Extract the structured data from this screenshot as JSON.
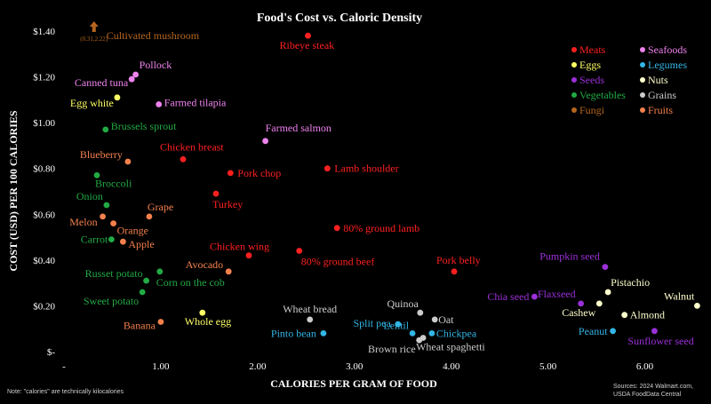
{
  "chart_data": {
    "type": "scatter",
    "title": "Food's Cost vs. Caloric Density",
    "xlabel": "CALORIES PER GRAM OF FOOD",
    "ylabel": "COST (USD) PER 100 CALORIES",
    "xlim": [
      0,
      6.5
    ],
    "ylim": [
      0,
      1.4
    ],
    "x_ticks": [
      {
        "value": 0,
        "label": "-"
      },
      {
        "value": 1,
        "label": "1.00"
      },
      {
        "value": 2,
        "label": "2.00"
      },
      {
        "value": 3,
        "label": "3.00"
      },
      {
        "value": 4,
        "label": "4.00"
      },
      {
        "value": 5,
        "label": "5.00"
      },
      {
        "value": 6,
        "label": "6.00"
      }
    ],
    "y_ticks": [
      {
        "value": 0,
        "label": "$-"
      },
      {
        "value": 0.2,
        "label": "$0.20"
      },
      {
        "value": 0.4,
        "label": "$0.40"
      },
      {
        "value": 0.6,
        "label": "$0.60"
      },
      {
        "value": 0.8,
        "label": "$0.80"
      },
      {
        "value": 1.0,
        "label": "$1.00"
      },
      {
        "value": 1.2,
        "label": "$1.20"
      },
      {
        "value": 1.4,
        "label": "$1.40"
      }
    ],
    "grid": false,
    "legend_position": "top-right",
    "categories": [
      {
        "name": "Meats",
        "color": "#ff2020"
      },
      {
        "name": "Seafoods",
        "color": "#ee82ee"
      },
      {
        "name": "Eggs",
        "color": "#ffff66"
      },
      {
        "name": "Legumes",
        "color": "#33b5e5"
      },
      {
        "name": "Seeds",
        "color": "#9b30d9"
      },
      {
        "name": "Nuts",
        "color": "#ffffcc"
      },
      {
        "name": "Vegetables",
        "color": "#22aa44"
      },
      {
        "name": "Grains",
        "color": "#cccccc"
      },
      {
        "name": "Fungi",
        "color": "#b5651d"
      },
      {
        "name": "Fruits",
        "color": "#f4804c"
      }
    ],
    "points": [
      {
        "name": "Ribeye steak",
        "category": "Meats",
        "x": 2.52,
        "y": 1.38
      },
      {
        "name": "Chicken breast",
        "category": "Meats",
        "x": 1.23,
        "y": 0.84
      },
      {
        "name": "Pork chop",
        "category": "Meats",
        "x": 1.72,
        "y": 0.78
      },
      {
        "name": "Lamb shoulder",
        "category": "Meats",
        "x": 2.72,
        "y": 0.8
      },
      {
        "name": "Turkey",
        "category": "Meats",
        "x": 1.57,
        "y": 0.69
      },
      {
        "name": "80% ground lamb",
        "category": "Meats",
        "x": 2.82,
        "y": 0.54
      },
      {
        "name": "Chicken wing",
        "category": "Meats",
        "x": 1.91,
        "y": 0.42
      },
      {
        "name": "80% ground beef",
        "category": "Meats",
        "x": 2.43,
        "y": 0.44
      },
      {
        "name": "Pork belly",
        "category": "Meats",
        "x": 4.03,
        "y": 0.35
      },
      {
        "name": "Pollock",
        "category": "Seafoods",
        "x": 0.74,
        "y": 1.21
      },
      {
        "name": "Canned tuna",
        "category": "Seafoods",
        "x": 0.7,
        "y": 1.19
      },
      {
        "name": "Farmed tilapia",
        "category": "Seafoods",
        "x": 0.98,
        "y": 1.08
      },
      {
        "name": "Farmed salmon",
        "category": "Seafoods",
        "x": 2.08,
        "y": 0.92
      },
      {
        "name": "Egg white",
        "category": "Eggs",
        "x": 0.55,
        "y": 1.11
      },
      {
        "name": "Whole egg",
        "category": "Eggs",
        "x": 1.43,
        "y": 0.17
      },
      {
        "name": "Split pea",
        "category": "Legumes",
        "x": 3.45,
        "y": 0.12
      },
      {
        "name": "Lentil",
        "category": "Legumes",
        "x": 3.6,
        "y": 0.08
      },
      {
        "name": "Chickpea",
        "category": "Legumes",
        "x": 3.8,
        "y": 0.08
      },
      {
        "name": "Pinto bean",
        "category": "Legumes",
        "x": 2.68,
        "y": 0.08
      },
      {
        "name": "Peanut",
        "category": "Legumes",
        "x": 5.67,
        "y": 0.09
      },
      {
        "name": "Pumpkin seed",
        "category": "Seeds",
        "x": 5.59,
        "y": 0.37
      },
      {
        "name": "Chia seed",
        "category": "Seeds",
        "x": 4.86,
        "y": 0.24
      },
      {
        "name": "Flaxseed",
        "category": "Seeds",
        "x": 5.34,
        "y": 0.21
      },
      {
        "name": "Sunflower seed",
        "category": "Seeds",
        "x": 6.1,
        "y": 0.09
      },
      {
        "name": "Pistachio",
        "category": "Nuts",
        "x": 5.62,
        "y": 0.26
      },
      {
        "name": "Walnut",
        "category": "Nuts",
        "x": 6.54,
        "y": 0.2
      },
      {
        "name": "Cashew",
        "category": "Nuts",
        "x": 5.53,
        "y": 0.21
      },
      {
        "name": "Almond",
        "category": "Nuts",
        "x": 5.79,
        "y": 0.16
      },
      {
        "name": "Brussels sprout",
        "category": "Vegetables",
        "x": 0.43,
        "y": 0.97
      },
      {
        "name": "Broccoli",
        "category": "Vegetables",
        "x": 0.34,
        "y": 0.77
      },
      {
        "name": "Onion",
        "category": "Vegetables",
        "x": 0.44,
        "y": 0.64
      },
      {
        "name": "Carrot",
        "category": "Vegetables",
        "x": 0.49,
        "y": 0.49
      },
      {
        "name": "Russet potato",
        "category": "Vegetables",
        "x": 0.85,
        "y": 0.31
      },
      {
        "name": "Corn on the cob",
        "category": "Vegetables",
        "x": 0.99,
        "y": 0.35
      },
      {
        "name": "Sweet potato",
        "category": "Vegetables",
        "x": 0.81,
        "y": 0.26
      },
      {
        "name": "Quinoa",
        "category": "Grains",
        "x": 3.68,
        "y": 0.17
      },
      {
        "name": "Oat",
        "category": "Grains",
        "x": 3.83,
        "y": 0.14
      },
      {
        "name": "Wheat bread",
        "category": "Grains",
        "x": 2.54,
        "y": 0.14
      },
      {
        "name": "Brown rice",
        "category": "Grains",
        "x": 3.67,
        "y": 0.05
      },
      {
        "name": "Wheat spaghetti",
        "category": "Grains",
        "x": 3.71,
        "y": 0.06
      },
      {
        "name": "Blueberry",
        "category": "Fruits",
        "x": 0.66,
        "y": 0.83
      },
      {
        "name": "Grape",
        "category": "Fruits",
        "x": 0.88,
        "y": 0.59
      },
      {
        "name": "Melon",
        "category": "Fruits",
        "x": 0.4,
        "y": 0.59
      },
      {
        "name": "Orange",
        "category": "Fruits",
        "x": 0.51,
        "y": 0.56
      },
      {
        "name": "Apple",
        "category": "Fruits",
        "x": 0.61,
        "y": 0.48
      },
      {
        "name": "Avocado",
        "category": "Fruits",
        "x": 1.7,
        "y": 0.35
      },
      {
        "name": "Banana",
        "category": "Fruits",
        "x": 1.0,
        "y": 0.13
      }
    ],
    "offscale_point": {
      "name": "Cultivated mushroom",
      "category": "Fungi",
      "x": 0.31,
      "y": 2.22,
      "label": "(0.31,2.22)"
    }
  },
  "note": "Note: \"calories\" are technically kilocalories",
  "source_lines": [
    "Sources: 2024 Walmart.com,",
    "USDA FoodData Central"
  ]
}
